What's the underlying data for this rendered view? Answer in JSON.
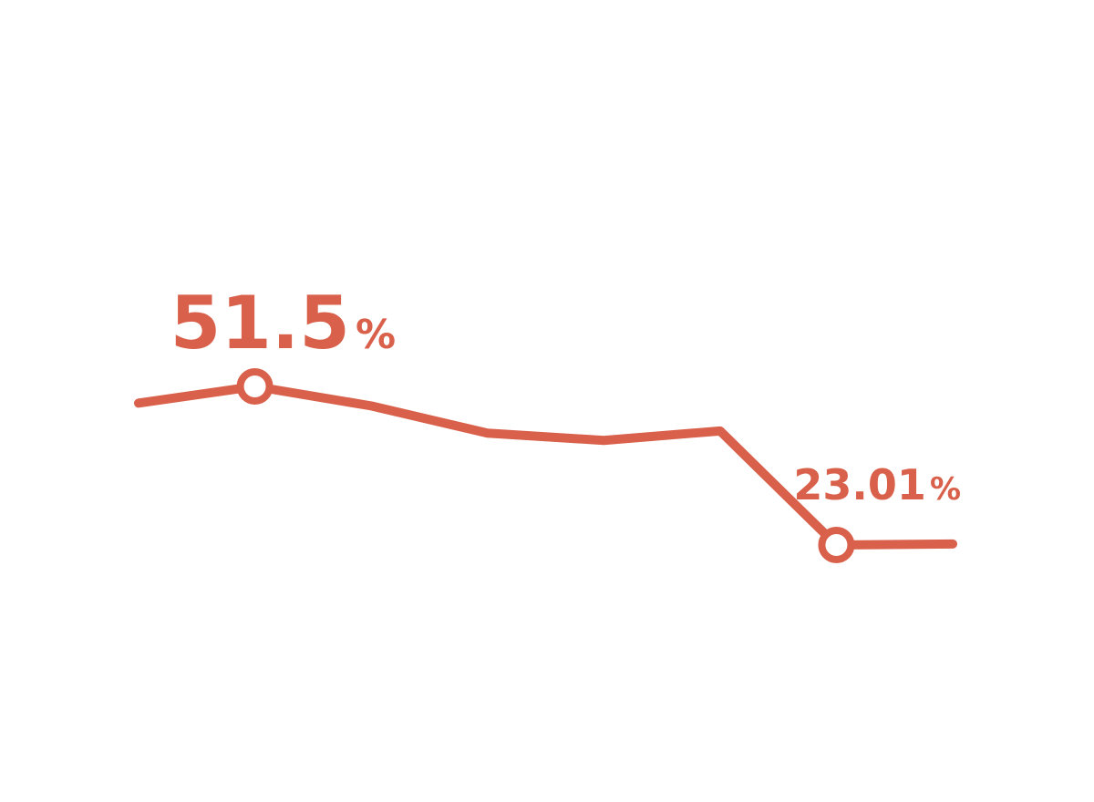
{
  "chart_data": {
    "type": "line",
    "x": [
      1,
      2,
      3,
      4,
      5,
      6,
      7,
      8
    ],
    "series": [
      {
        "values": [
          48.5,
          51.5,
          48.0,
          43.1,
          41.8,
          43.5,
          23.01,
          23.2
        ]
      }
    ],
    "highlighted_points": [
      {
        "index": 1,
        "value_text": "51.5",
        "unit": "%"
      },
      {
        "index": 6,
        "value_text": "23.01",
        "unit": "%"
      }
    ],
    "ylim": [
      0,
      80
    ],
    "grid": false,
    "legend": "none",
    "color": "#d9604a"
  }
}
